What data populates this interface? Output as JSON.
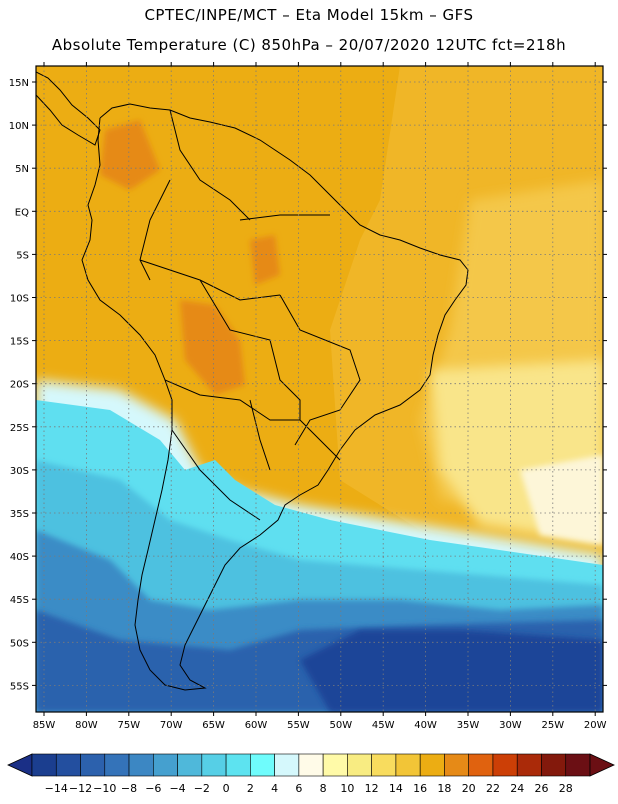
{
  "header": {
    "line1": "CPTEC/INPE/MCT –   Eta Model 15km – GFS",
    "line2": "Absolute Temperature (C) 850hPa – 20/07/2020 12UTC fct=218h"
  },
  "axes": {
    "lat_labels": [
      "15N",
      "10N",
      "5N",
      "EQ",
      "5S",
      "10S",
      "15S",
      "20S",
      "25S",
      "30S",
      "35S",
      "40S",
      "45S",
      "50S",
      "55S"
    ],
    "lon_labels": [
      "85W",
      "80W",
      "75W",
      "70W",
      "65W",
      "60W",
      "55W",
      "50W",
      "45W",
      "40W",
      "35W",
      "30W",
      "25W",
      "20W"
    ]
  },
  "colorbar": {
    "labels": [
      "-14",
      "-12",
      "-10",
      "-8",
      "-6",
      "-4",
      "-2",
      "0",
      "2",
      "4",
      "6",
      "8",
      "10",
      "12",
      "14",
      "16",
      "18",
      "20",
      "22",
      "24",
      "26",
      "28"
    ],
    "colors": [
      "#1b3e8f",
      "#234f9f",
      "#2c61ad",
      "#3473b9",
      "#3c87c3",
      "#45a0cf",
      "#4fb8da",
      "#56cfe6",
      "#5de3f0",
      "#6ffcfc",
      "#d5f8fc",
      "#fffbe8",
      "#fffaa8",
      "#f8ec82",
      "#f8dc5e",
      "#f2c537",
      "#ecad13",
      "#e68a17",
      "#e0620f",
      "#cc3f06",
      "#aa2a09",
      "#83190c",
      "#6b0f14"
    ],
    "low_arrow_color": "#1a2f86",
    "high_arrow_color": "#6b0f14"
  },
  "fills": {
    "ocean_warm": "#f0b627",
    "ocean_warm_light": "#f4c748",
    "tropical_land": "#ecad13",
    "hot_land": "#e68a17",
    "pale_yellow": "#f9e58a",
    "cream": "#fdf6d8",
    "pale_cyan": "#d5f8fc",
    "cyan": "#5fdff0",
    "cyan_mid": "#4dc1e0",
    "blue_mid": "#3a8cc6",
    "blue_deep": "#2b62ad",
    "blue_darkest": "#1e4598",
    "border": "#000000"
  }
}
